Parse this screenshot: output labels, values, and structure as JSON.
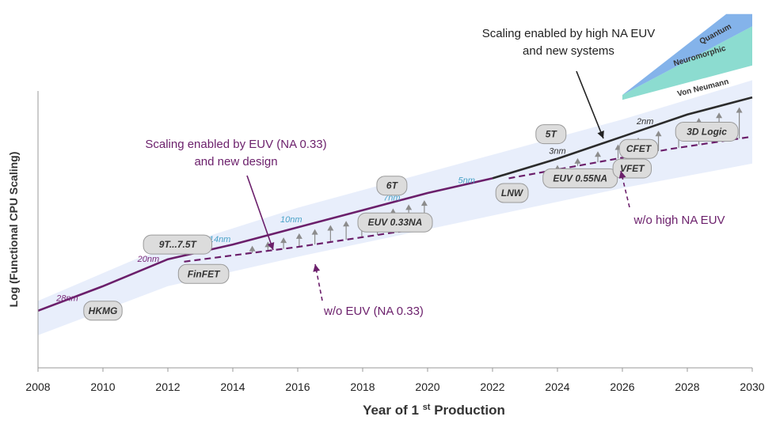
{
  "chart_data": {
    "type": "line",
    "title": "",
    "xlabel": "Year of 1st Production",
    "ylabel": "Log (Functional CPU Scaling)",
    "xlim": [
      2008,
      2030
    ],
    "x_ticks": [
      "2008",
      "2010",
      "2012",
      "2014",
      "2016",
      "2018",
      "2020",
      "2022",
      "2024",
      "2026",
      "2028",
      "2030"
    ],
    "series": [
      {
        "name": "",
        "x": [
          2008,
          2010,
          2012,
          2014,
          2016,
          2018,
          2020,
          2022
        ],
        "y": [
          0.12,
          0.22,
          0.33,
          0.39,
          0.46,
          0.53,
          0.6,
          0.66
        ]
      },
      {
        "name": "",
        "x": [
          2022,
          2024,
          2026,
          2028,
          2030
        ],
        "y": [
          0.66,
          0.74,
          0.83,
          0.92,
          0.99
        ]
      },
      {
        "name": "",
        "x": [
          2012.5,
          2016,
          2018,
          2020
        ],
        "y": [
          0.32,
          0.38,
          0.42,
          0.46
        ]
      },
      {
        "name": "",
        "x": [
          2022.5,
          2025,
          2027.5,
          2030
        ],
        "y": [
          0.66,
          0.72,
          0.78,
          0.83
        ]
      }
    ],
    "bands": [
      {
        "label": "Von Neumann"
      },
      {
        "label": "Neuromorphic"
      },
      {
        "label": "Quantum"
      }
    ],
    "node_labels": [
      {
        "text": "28nm",
        "x": 2008.9,
        "y": 0.16,
        "color": "#7a2a7a"
      },
      {
        "text": "20nm",
        "x": 2011.4,
        "y": 0.32,
        "color": "#7a2a7a"
      },
      {
        "text": "14nm",
        "x": 2013.6,
        "y": 0.4,
        "color": "#4aa3c8"
      },
      {
        "text": "10nm",
        "x": 2015.8,
        "y": 0.48,
        "color": "#4aa3c8"
      },
      {
        "text": "7nm",
        "x": 2018.9,
        "y": 0.57,
        "color": "#4aa3c8"
      },
      {
        "text": "5nm",
        "x": 2021.2,
        "y": 0.64,
        "color": "#4aa3c8"
      },
      {
        "text": "3nm",
        "x": 2024.0,
        "y": 0.76,
        "color": "#333333"
      },
      {
        "text": "2nm",
        "x": 2026.7,
        "y": 0.88,
        "color": "#333333"
      }
    ],
    "technology_labels": [
      {
        "text": "HKMG",
        "x": 2010.0,
        "y": 0.12
      },
      {
        "text": "9T...7.5T",
        "x": 2012.3,
        "y": 0.39
      },
      {
        "text": "FinFET",
        "x": 2013.1,
        "y": 0.27
      },
      {
        "text": "6T",
        "x": 2018.9,
        "y": 0.63
      },
      {
        "text": "EUV 0.33NA",
        "x": 2019.0,
        "y": 0.48
      },
      {
        "text": "5T",
        "x": 2023.8,
        "y": 0.84
      },
      {
        "text": "LNW",
        "x": 2022.6,
        "y": 0.6
      },
      {
        "text": "EUV 0.55NA",
        "x": 2024.7,
        "y": 0.66
      },
      {
        "text": "CFET",
        "x": 2026.5,
        "y": 0.78
      },
      {
        "text": "VFET",
        "x": 2026.3,
        "y": 0.7
      },
      {
        "text": "3D Logic",
        "x": 2028.6,
        "y": 0.85
      }
    ],
    "annotations": [
      {
        "lines": [
          "Scaling enabled by high NA EUV",
          "and new systems"
        ],
        "color": "#222222"
      },
      {
        "lines": [
          "Scaling enabled by EUV (NA 0.33)",
          "and new design"
        ],
        "color": "#6b1f6b"
      },
      {
        "lines": [
          "w/o EUV (NA 0.33)"
        ],
        "color": "#6b1f6b"
      },
      {
        "lines": [
          "w/o high NA EUV"
        ],
        "color": "#6b1f6b"
      }
    ],
    "grid": false,
    "legend": "none"
  },
  "colors": {
    "purple": "#6b1f6b",
    "dark": "#2b2b2b",
    "band_light": "#e8eefb",
    "band_teal": "#78d6c8",
    "band_blue": "#6fa6e6",
    "pill_fill": "#dcdcdc",
    "pill_stroke": "#9a9a9a",
    "arrow": "#8c8c8c"
  }
}
